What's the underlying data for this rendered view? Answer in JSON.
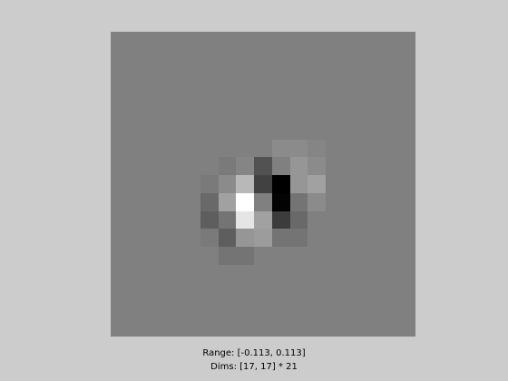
{
  "figure": {
    "background_color": "#cccccc",
    "image": {
      "rows": 17,
      "cols": 17,
      "zoom": 21,
      "colormap": "gray",
      "value_range": [
        -0.113,
        0.113
      ],
      "pixels": [
        [
          0,
          0,
          0,
          0,
          0,
          0,
          0,
          0,
          0,
          0,
          0,
          0,
          0,
          0,
          0,
          0,
          0
        ],
        [
          0,
          0,
          0,
          0,
          0,
          0,
          0,
          0,
          0,
          0,
          0,
          0,
          0,
          0,
          0,
          0,
          0
        ],
        [
          0,
          0,
          0,
          0,
          0,
          0,
          0,
          0,
          0,
          0,
          0,
          0,
          0,
          0,
          0,
          0,
          0
        ],
        [
          0,
          0,
          0,
          0,
          0,
          0,
          0,
          0,
          0,
          0,
          0,
          0,
          0,
          0,
          0,
          0,
          0
        ],
        [
          0,
          0,
          0,
          0,
          0,
          0,
          0,
          0,
          0,
          0,
          0,
          0,
          0,
          0,
          0,
          0,
          0
        ],
        [
          0,
          0,
          0,
          0,
          0,
          0,
          0,
          0,
          0,
          0,
          0,
          0,
          0,
          0,
          0,
          0,
          0
        ],
        [
          0,
          0,
          0,
          0,
          0,
          0,
          0,
          0,
          0,
          0.01,
          0.01,
          0.005,
          0,
          0,
          0,
          0,
          0
        ],
        [
          0,
          0,
          0,
          0,
          0,
          0,
          -0.005,
          0.005,
          -0.04,
          0,
          0.02,
          0.01,
          0,
          0,
          0,
          0,
          0
        ],
        [
          0,
          0,
          0,
          0,
          0,
          -0.005,
          0.01,
          0.05,
          -0.055,
          -0.113,
          0.02,
          0.03,
          0,
          0,
          0,
          0,
          0
        ],
        [
          0,
          0,
          0,
          0,
          0,
          -0.02,
          0.03,
          0.113,
          0,
          -0.11,
          -0.01,
          0.01,
          0,
          0,
          0,
          0,
          0
        ],
        [
          0,
          0,
          0,
          0,
          0,
          -0.03,
          -0.01,
          0.09,
          0.03,
          -0.06,
          -0.02,
          0,
          0,
          0,
          0,
          0,
          0
        ],
        [
          0,
          0,
          0,
          0,
          0,
          -0.005,
          -0.03,
          0.02,
          0.025,
          -0.01,
          -0.01,
          0,
          0,
          0,
          0,
          0,
          0
        ],
        [
          0,
          0,
          0,
          0,
          0,
          0,
          -0.01,
          -0.01,
          0,
          0,
          0,
          0,
          0,
          0,
          0,
          0,
          0
        ],
        [
          0,
          0,
          0,
          0,
          0,
          0,
          0,
          0,
          0,
          0,
          0,
          0,
          0,
          0,
          0,
          0,
          0
        ],
        [
          0,
          0,
          0,
          0,
          0,
          0,
          0,
          0,
          0,
          0,
          0,
          0,
          0,
          0,
          0,
          0,
          0
        ],
        [
          0,
          0,
          0,
          0,
          0,
          0,
          0,
          0,
          0,
          0,
          0,
          0,
          0,
          0,
          0,
          0,
          0
        ],
        [
          0,
          0,
          0,
          0,
          0,
          0,
          0,
          0,
          0,
          0,
          0,
          0,
          0,
          0,
          0,
          0,
          0
        ]
      ]
    },
    "range_text": "Range: [-0.113, 0.113]",
    "dims_text": "Dims: [17, 17] * 21"
  }
}
